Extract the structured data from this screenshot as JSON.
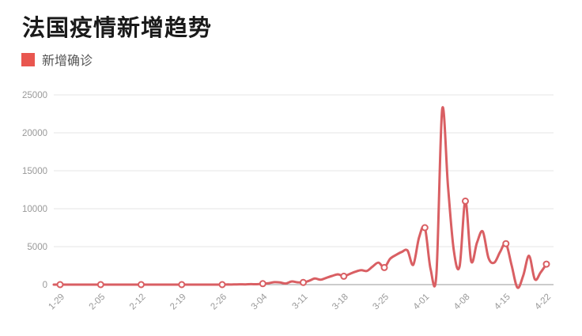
{
  "header": {
    "title": "法国疫情新增趋势"
  },
  "legend": {
    "label": "新增确诊",
    "swatch_color": "#e9564f"
  },
  "chart_data": {
    "type": "line",
    "title": "法国疫情新增趋势",
    "series_name": "新增确诊",
    "x": [
      "1-29",
      "1-30",
      "1-31",
      "2-01",
      "2-02",
      "2-03",
      "2-04",
      "2-05",
      "2-06",
      "2-07",
      "2-08",
      "2-09",
      "2-10",
      "2-11",
      "2-12",
      "2-13",
      "2-14",
      "2-15",
      "2-16",
      "2-17",
      "2-18",
      "2-19",
      "2-20",
      "2-21",
      "2-22",
      "2-23",
      "2-24",
      "2-25",
      "2-26",
      "2-27",
      "2-28",
      "2-29",
      "3-01",
      "3-02",
      "3-03",
      "3-04",
      "3-05",
      "3-06",
      "3-07",
      "3-08",
      "3-09",
      "3-10",
      "3-11",
      "3-12",
      "3-13",
      "3-14",
      "3-15",
      "3-16",
      "3-17",
      "3-18",
      "3-19",
      "3-20",
      "3-21",
      "3-22",
      "3-23",
      "3-24",
      "3-25",
      "3-26",
      "3-27",
      "3-28",
      "3-29",
      "3-30",
      "3-31",
      "4-01",
      "4-02",
      "4-03",
      "4-04",
      "4-05",
      "4-06",
      "4-07",
      "4-08",
      "4-09",
      "4-10",
      "4-11",
      "4-12",
      "4-13",
      "4-14",
      "4-15",
      "4-16",
      "4-17",
      "4-18",
      "4-19",
      "4-20",
      "4-21",
      "4-22"
    ],
    "values": [
      0,
      0,
      0,
      0,
      0,
      0,
      0,
      0,
      0,
      0,
      0,
      0,
      0,
      0,
      0,
      0,
      0,
      0,
      0,
      0,
      0,
      0,
      0,
      0,
      0,
      0,
      0,
      0,
      2,
      18,
      19,
      43,
      30,
      61,
      48,
      130,
      190,
      320,
      280,
      150,
      420,
      300,
      280,
      500,
      800,
      650,
      900,
      1150,
      1350,
      1100,
      1400,
      1700,
      1900,
      1800,
      2400,
      2900,
      2250,
      3400,
      3900,
      4300,
      4500,
      2600,
      6200,
      7500,
      2000,
      1400,
      23100,
      13000,
      4500,
      2400,
      11000,
      3100,
      5500,
      7000,
      3500,
      2900,
      4300,
      5400,
      2500,
      -400,
      1200,
      3800,
      700,
      1600,
      2700
    ],
    "tick_labels": [
      "1-29",
      "2-05",
      "2-12",
      "2-19",
      "2-26",
      "3-04",
      "3-11",
      "3-18",
      "3-25",
      "4-01",
      "4-08",
      "4-15",
      "4-22"
    ],
    "marker_every": 7,
    "y_ticks": [
      0,
      5000,
      10000,
      15000,
      20000,
      25000
    ],
    "ylim": [
      0,
      25000
    ],
    "grid": true,
    "legend_position": "top-left",
    "colors": {
      "line": "#d95f63",
      "marker_fill": "#ffffff",
      "grid": "#e4e4e4",
      "axis": "#999999",
      "tick_text": "#999999",
      "title_text": "#1a1a1a",
      "legend_text": "#555555"
    }
  }
}
